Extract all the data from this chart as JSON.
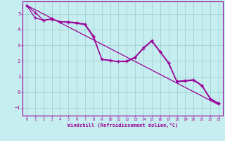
{
  "xlabel": "Windchill (Refroidissement éolien,°C)",
  "xlim": [
    -0.5,
    23.5
  ],
  "ylim": [
    -1.5,
    5.8
  ],
  "yticks": [
    -1,
    0,
    1,
    2,
    3,
    4,
    5
  ],
  "xticks": [
    0,
    1,
    2,
    3,
    4,
    5,
    6,
    7,
    8,
    9,
    10,
    11,
    12,
    13,
    14,
    15,
    16,
    17,
    18,
    19,
    20,
    21,
    22,
    23
  ],
  "background_color": "#c6edef",
  "grid_color": "#99cccc",
  "line_color": "#990099",
  "line1_x": [
    0,
    1,
    2,
    3,
    4,
    5,
    6,
    7,
    8,
    9,
    10,
    11,
    12,
    13,
    14,
    15,
    16,
    17,
    18,
    19,
    20,
    21,
    22,
    23
  ],
  "line1_y": [
    5.55,
    5.1,
    4.6,
    4.65,
    4.5,
    4.5,
    4.45,
    4.35,
    3.6,
    2.1,
    2.05,
    1.95,
    2.0,
    2.25,
    2.85,
    3.3,
    2.6,
    1.9,
    0.7,
    0.75,
    0.8,
    0.45,
    -0.4,
    -0.7
  ],
  "line2_x": [
    0,
    1,
    2,
    3,
    4,
    5,
    6,
    7,
    8,
    9,
    10,
    11,
    12,
    13,
    14,
    15,
    16,
    17,
    18,
    19,
    20,
    21,
    22,
    23
  ],
  "line2_y": [
    5.55,
    4.75,
    4.6,
    4.7,
    4.5,
    4.45,
    4.4,
    4.3,
    3.5,
    2.1,
    2.0,
    1.95,
    1.95,
    2.2,
    2.8,
    3.25,
    2.55,
    1.85,
    0.65,
    0.7,
    0.75,
    0.4,
    -0.45,
    -0.75
  ],
  "line3_x": [
    0,
    23
  ],
  "line3_y": [
    5.55,
    -0.8
  ]
}
